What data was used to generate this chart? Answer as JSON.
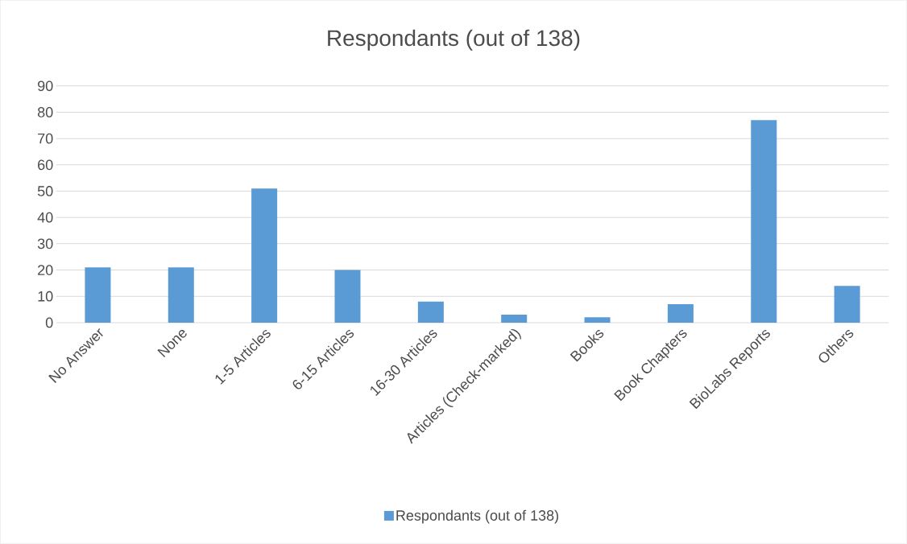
{
  "chart_data": {
    "type": "bar",
    "title": "Respondants (out of 138)",
    "categories": [
      "No Answer",
      "None",
      "1-5 Articles",
      "6-15 Articles",
      "16-30 Articles",
      "Articles (Check-marked)",
      "Books",
      "Book Chapters",
      "BioLabs Reports",
      "Others"
    ],
    "series": [
      {
        "name": "Respondants (out of 138)",
        "color": "#5b9bd5",
        "values": [
          21,
          21,
          51,
          20,
          8,
          3,
          2,
          7,
          77,
          14
        ]
      }
    ],
    "ylim": [
      0,
      90
    ],
    "yticks": [
      0,
      10,
      20,
      30,
      40,
      50,
      60,
      70,
      80,
      90
    ],
    "grid": "y",
    "legend": "bottom"
  }
}
